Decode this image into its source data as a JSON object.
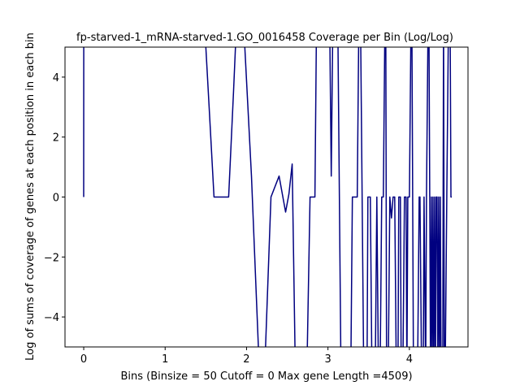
{
  "chart_data": {
    "type": "line",
    "title": "fp-starved-1_mRNA-starved-1.GO_0016458 Coverage per Bin (Log/Log)",
    "xlabel": "Bins  (Binsize = 50 Cutoff = 0 Max gene Length =4509)",
    "ylabel": "Log of sums of coverage of genes at each position in each bin",
    "xlim": [
      -0.23,
      4.72
    ],
    "ylim": [
      -5,
      5
    ],
    "x_ticks": [
      0,
      1,
      2,
      3,
      4
    ],
    "x_tick_labels": [
      "0",
      "1",
      "2",
      "3",
      "4"
    ],
    "y_ticks": [
      -4,
      -2,
      0,
      2,
      4
    ],
    "y_tick_labels": [
      "−4",
      "−2",
      "0",
      "2",
      "4"
    ],
    "grid": false,
    "color": "#000080",
    "series": [
      {
        "points": [
          [
            0,
            0
          ],
          [
            0.001,
            6
          ],
          [
            1.48,
            6
          ],
          [
            1.54,
            3.0
          ],
          [
            1.6,
            0
          ],
          [
            1.66,
            0
          ],
          [
            1.72,
            0
          ],
          [
            1.78,
            0
          ],
          [
            1.84,
            3.5
          ],
          [
            1.88,
            6
          ],
          [
            1.96,
            6
          ],
          [
            2.06,
            0.7
          ],
          [
            2.16,
            -6
          ],
          [
            2.22,
            -6
          ],
          [
            2.26,
            -3.0
          ],
          [
            2.3,
            0
          ],
          [
            2.4,
            0.7
          ],
          [
            2.48,
            -0.5
          ],
          [
            2.52,
            0.1
          ],
          [
            2.56,
            1.1
          ],
          [
            2.6,
            -6
          ],
          [
            2.74,
            -6
          ],
          [
            2.78,
            0
          ],
          [
            2.84,
            0
          ],
          [
            2.86,
            6
          ],
          [
            3.02,
            6
          ],
          [
            3.04,
            0.7
          ],
          [
            3.06,
            6
          ],
          [
            3.12,
            6
          ],
          [
            3.16,
            -6
          ],
          [
            3.28,
            -6
          ],
          [
            3.3,
            0
          ],
          [
            3.36,
            0
          ],
          [
            3.38,
            6
          ],
          [
            3.4,
            6
          ],
          [
            3.44,
            -6
          ],
          [
            3.48,
            -6
          ],
          [
            3.49,
            0
          ],
          [
            3.52,
            0
          ],
          [
            3.54,
            -6
          ],
          [
            3.58,
            -6
          ],
          [
            3.6,
            0
          ],
          [
            3.62,
            -6
          ],
          [
            3.64,
            -6
          ],
          [
            3.66,
            0
          ],
          [
            3.68,
            0
          ],
          [
            3.7,
            6
          ],
          [
            3.71,
            6
          ],
          [
            3.72,
            -6
          ],
          [
            3.74,
            -6
          ],
          [
            3.76,
            0
          ],
          [
            3.78,
            -0.7
          ],
          [
            3.8,
            0
          ],
          [
            3.82,
            0
          ],
          [
            3.84,
            -6
          ],
          [
            3.86,
            -6
          ],
          [
            3.87,
            0
          ],
          [
            3.89,
            0
          ],
          [
            3.9,
            -6
          ],
          [
            3.92,
            -6
          ],
          [
            3.94,
            0
          ],
          [
            3.96,
            0
          ],
          [
            3.97,
            -6
          ],
          [
            3.98,
            0
          ],
          [
            4.0,
            0
          ],
          [
            4.02,
            6
          ],
          [
            4.03,
            6
          ],
          [
            4.05,
            -6
          ],
          [
            4.1,
            -6
          ],
          [
            4.12,
            0
          ],
          [
            4.13,
            0
          ],
          [
            4.15,
            -6
          ],
          [
            4.17,
            -6
          ],
          [
            4.18,
            0
          ],
          [
            4.2,
            -6
          ],
          [
            4.21,
            0
          ],
          [
            4.23,
            6
          ],
          [
            4.24,
            6
          ],
          [
            4.26,
            -6
          ],
          [
            4.27,
            0
          ],
          [
            4.28,
            -6
          ],
          [
            4.29,
            0
          ],
          [
            4.3,
            -6
          ],
          [
            4.31,
            0
          ],
          [
            4.32,
            -6
          ],
          [
            4.33,
            0
          ],
          [
            4.34,
            0
          ],
          [
            4.35,
            -6
          ],
          [
            4.36,
            0
          ],
          [
            4.37,
            -6
          ],
          [
            4.38,
            0
          ],
          [
            4.39,
            -6
          ],
          [
            4.41,
            -6
          ],
          [
            4.42,
            6
          ],
          [
            4.43,
            -6
          ],
          [
            4.44,
            -6
          ],
          [
            4.46,
            0
          ],
          [
            4.48,
            6
          ],
          [
            4.5,
            6
          ],
          [
            4.51,
            0
          ],
          [
            4.52,
            0
          ]
        ]
      }
    ]
  }
}
